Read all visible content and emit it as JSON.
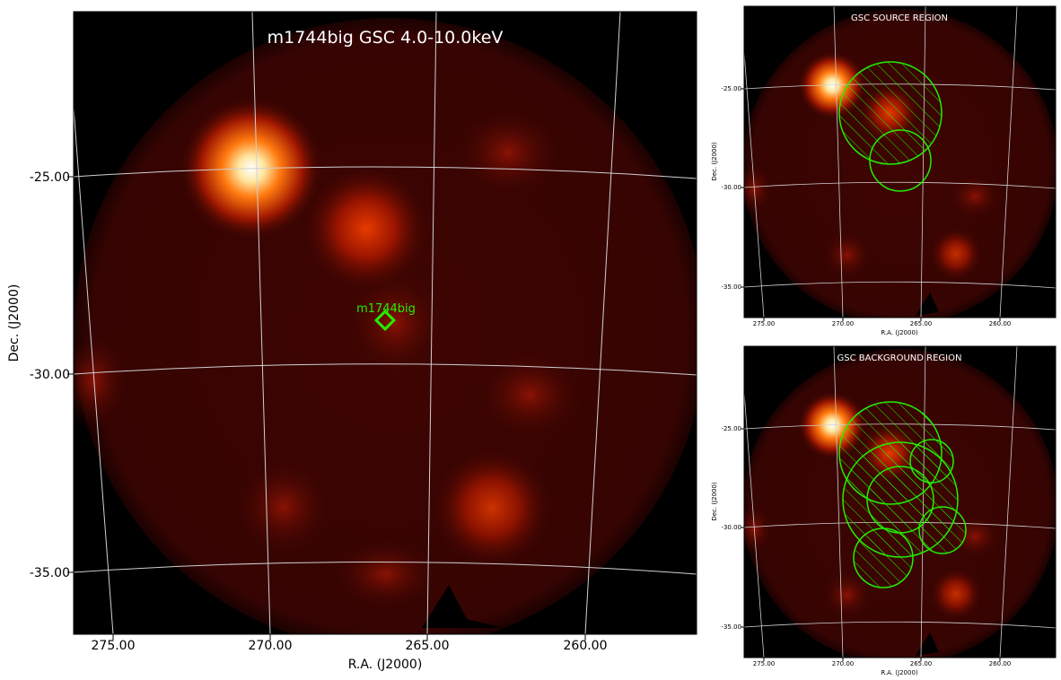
{
  "main": {
    "title": "m1744big GSC 4.0-10.0keV",
    "source_label": "m1744big",
    "xlabel": "R.A. (J2000)",
    "ylabel": "Dec. (J2000)",
    "xticks": [
      "275.00",
      "270.00",
      "265.00",
      "260.00"
    ],
    "yticks": [
      "-25.00",
      "-30.00",
      "-35.00"
    ]
  },
  "source_region": {
    "title": "GSC SOURCE REGION",
    "xlabel": "R.A. (J2000)",
    "ylabel": "Dec. (J2000)",
    "xticks": [
      "275.00",
      "270.00",
      "265.00",
      "260.00"
    ],
    "yticks": [
      "-25.00",
      "-30.00",
      "-35.00"
    ]
  },
  "background_region": {
    "title": "GSC BACKGROUND REGION",
    "xlabel": "R.A. (J2000)",
    "ylabel": "Dec. (J2000)",
    "xticks": [
      "275.00",
      "270.00",
      "265.00",
      "260.00"
    ],
    "yticks": [
      "-25.00",
      "-30.00",
      "-35.00"
    ]
  },
  "colors": {
    "region": "#22ee00",
    "grid": "#c8c8c8",
    "hot_core": "#fff6e0",
    "hot_mid": "#ff5a00",
    "disk": "#3a0402"
  }
}
